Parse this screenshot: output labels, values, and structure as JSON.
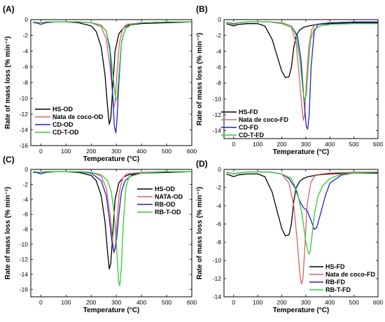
{
  "chart_data": [
    {
      "type": "line",
      "panel_label": "(A)",
      "xlabel": "Temperature (°C)",
      "ylabel": "Rate of mass loss (% min⁻¹)",
      "xlim": [
        -40,
        600
      ],
      "ylim": [
        -16,
        0
      ],
      "xticks": [
        0,
        100,
        200,
        300,
        400,
        500,
        600
      ],
      "yticks": [
        0,
        -2,
        -4,
        -6,
        -8,
        -10,
        -12,
        -14,
        -16
      ],
      "legend_position": "bottom-left",
      "series": [
        {
          "name": "HS-OD",
          "color": "#000000",
          "x": [
            -30,
            0,
            20,
            60,
            100,
            150,
            200,
            220,
            240,
            255,
            265,
            272,
            278,
            285,
            295,
            310,
            330,
            350,
            400,
            500,
            600
          ],
          "y": [
            -0.4,
            -0.4,
            -0.3,
            -0.3,
            -0.3,
            -0.4,
            -0.8,
            -1.5,
            -3.5,
            -7,
            -11,
            -13.3,
            -12.5,
            -9,
            -4,
            -1.8,
            -1,
            -0.7,
            -0.5,
            -0.4,
            -0.3
          ]
        },
        {
          "name": "Nata de coco-OD",
          "color": "#e06060",
          "x": [
            -30,
            0,
            20,
            60,
            100,
            150,
            200,
            240,
            260,
            275,
            285,
            290,
            295,
            302,
            312,
            325,
            340,
            400,
            500,
            600
          ],
          "y": [
            -0.3,
            -0.4,
            -0.3,
            -0.3,
            -0.3,
            -0.3,
            -0.4,
            -0.9,
            -2.5,
            -6,
            -9.5,
            -11.2,
            -10.5,
            -7,
            -3,
            -1.2,
            -0.6,
            -0.4,
            -0.3,
            -0.3
          ]
        },
        {
          "name": "CD-OD",
          "color": "#2020cc",
          "x": [
            -30,
            0,
            20,
            60,
            100,
            150,
            200,
            240,
            260,
            275,
            285,
            292,
            298,
            302,
            310,
            320,
            335,
            360,
            400,
            500,
            600
          ],
          "y": [
            -0.3,
            -0.6,
            -0.4,
            -0.3,
            -0.3,
            -0.3,
            -0.4,
            -0.7,
            -1.5,
            -4,
            -9,
            -13.5,
            -14.4,
            -13,
            -8,
            -3,
            -1.2,
            -0.6,
            -0.4,
            -0.3,
            -0.3
          ]
        },
        {
          "name": "CD-T-OD",
          "color": "#33cc33",
          "x": [
            -30,
            0,
            20,
            60,
            100,
            150,
            200,
            240,
            260,
            275,
            288,
            298,
            303,
            310,
            320,
            335,
            360,
            400,
            500,
            600
          ],
          "y": [
            -0.3,
            -0.4,
            -0.3,
            -0.3,
            -0.3,
            -0.3,
            -0.4,
            -0.7,
            -1.5,
            -3.5,
            -7.5,
            -10.3,
            -10,
            -7,
            -3,
            -1.2,
            -0.6,
            -0.4,
            -0.3,
            -0.3
          ]
        }
      ]
    },
    {
      "type": "line",
      "panel_label": "(B)",
      "xlabel": "Temperature (°C)",
      "ylabel": "Rate of mass loss (% min⁻¹)",
      "xlim": [
        -40,
        600
      ],
      "ylim": [
        -15,
        0
      ],
      "xticks": [
        0,
        100,
        200,
        300,
        400,
        500,
        600
      ],
      "yticks": [
        0,
        -2,
        -4,
        -6,
        -8,
        -10,
        -12,
        -14
      ],
      "legend_position": "bottom-left",
      "series": [
        {
          "name": "HS-FD",
          "color": "#000000",
          "x": [
            -30,
            0,
            20,
            60,
            100,
            130,
            160,
            180,
            200,
            215,
            230,
            240,
            250,
            260,
            275,
            290,
            310,
            350,
            400,
            500,
            600
          ],
          "y": [
            -0.5,
            -0.8,
            -0.6,
            -0.5,
            -0.5,
            -0.8,
            -2.5,
            -4.5,
            -6.5,
            -7.3,
            -7.2,
            -6,
            -3.5,
            -2,
            -1.3,
            -1,
            -0.8,
            -0.6,
            -0.5,
            -0.4,
            -0.4
          ]
        },
        {
          "name": "Nata de coco-FD",
          "color": "#e06060",
          "x": [
            -30,
            0,
            20,
            60,
            100,
            150,
            200,
            240,
            260,
            275,
            285,
            290,
            295,
            302,
            312,
            325,
            340,
            400,
            500,
            600
          ],
          "y": [
            -0.3,
            -0.5,
            -0.4,
            -0.3,
            -0.3,
            -0.3,
            -0.5,
            -1,
            -3,
            -8,
            -11.5,
            -12.7,
            -12,
            -8,
            -3.5,
            -1.2,
            -0.6,
            -0.4,
            -0.3,
            -0.3
          ]
        },
        {
          "name": "CD-FD",
          "color": "#2020cc",
          "x": [
            -30,
            0,
            20,
            60,
            100,
            150,
            200,
            240,
            265,
            280,
            292,
            302,
            308,
            314,
            322,
            335,
            350,
            400,
            500,
            600
          ],
          "y": [
            -0.3,
            -0.6,
            -0.4,
            -0.3,
            -0.3,
            -0.3,
            -0.4,
            -0.8,
            -2,
            -5,
            -10,
            -13.5,
            -13.8,
            -12,
            -6,
            -1.5,
            -0.6,
            -0.4,
            -0.3,
            -0.3
          ]
        },
        {
          "name": "CD-T-FD",
          "color": "#33cc33",
          "x": [
            -30,
            0,
            20,
            60,
            100,
            150,
            200,
            240,
            260,
            275,
            288,
            295,
            302,
            310,
            320,
            335,
            360,
            400,
            500,
            600
          ],
          "y": [
            -0.3,
            -0.5,
            -0.4,
            -0.3,
            -0.3,
            -0.3,
            -0.4,
            -0.8,
            -2,
            -5,
            -9,
            -10.2,
            -9.5,
            -6,
            -2.5,
            -1.2,
            -0.8,
            -0.6,
            -0.5,
            -0.5
          ]
        }
      ]
    },
    {
      "type": "line",
      "panel_label": "(C)",
      "xlabel": "Temperature (°C)",
      "ylabel": "Rate of mass loss (% min⁻¹)",
      "xlim": [
        -40,
        600
      ],
      "ylim": [
        -17,
        0
      ],
      "xticks": [
        0,
        100,
        200,
        300,
        400,
        500,
        600
      ],
      "yticks": [
        0,
        -2,
        -4,
        -6,
        -8,
        -10,
        -12,
        -14,
        -16
      ],
      "legend_position": "top-right",
      "series": [
        {
          "name": "HS-OD",
          "color": "#000000",
          "x": [
            -30,
            0,
            20,
            60,
            100,
            150,
            200,
            220,
            240,
            255,
            265,
            272,
            278,
            285,
            295,
            310,
            330,
            350,
            400,
            500,
            600
          ],
          "y": [
            -0.4,
            -0.4,
            -0.3,
            -0.3,
            -0.3,
            -0.4,
            -0.8,
            -1.5,
            -3.5,
            -7,
            -11,
            -13.3,
            -12.5,
            -9,
            -4,
            -1.8,
            -1,
            -0.7,
            -0.5,
            -0.4,
            -0.3
          ]
        },
        {
          "name": "NATA-OD",
          "color": "#e06060",
          "x": [
            -30,
            0,
            20,
            60,
            100,
            150,
            200,
            240,
            260,
            275,
            285,
            290,
            295,
            302,
            312,
            325,
            340,
            400,
            500,
            600
          ],
          "y": [
            -0.3,
            -0.4,
            -0.3,
            -0.3,
            -0.3,
            -0.3,
            -0.4,
            -0.9,
            -2.5,
            -6,
            -9.5,
            -11.2,
            -10.5,
            -7,
            -3,
            -1.2,
            -0.6,
            -0.4,
            -0.3,
            -0.3
          ]
        },
        {
          "name": "RB-OD",
          "color": "#2020cc",
          "x": [
            -30,
            0,
            20,
            60,
            100,
            150,
            200,
            240,
            260,
            272,
            282,
            290,
            296,
            302,
            310,
            320,
            335,
            360,
            400,
            500,
            600
          ],
          "y": [
            -0.3,
            -0.6,
            -0.4,
            -0.3,
            -0.3,
            -0.3,
            -0.5,
            -1.5,
            -3.5,
            -6.5,
            -9.5,
            -11,
            -10.5,
            -9,
            -6,
            -3,
            -1.5,
            -0.8,
            -0.5,
            -0.3,
            -0.3
          ]
        },
        {
          "name": "RB-T-OD",
          "color": "#33cc33",
          "x": [
            -30,
            0,
            20,
            60,
            100,
            150,
            200,
            240,
            265,
            280,
            292,
            302,
            310,
            314,
            320,
            328,
            338,
            350,
            400,
            500,
            600
          ],
          "y": [
            -0.3,
            -0.4,
            -0.3,
            -0.3,
            -0.3,
            -0.3,
            -0.4,
            -0.7,
            -1.5,
            -3,
            -6,
            -11,
            -15.3,
            -15.5,
            -13,
            -7,
            -2.5,
            -1,
            -0.5,
            -0.3,
            -0.3
          ]
        }
      ]
    },
    {
      "type": "line",
      "panel_label": "(D)",
      "xlabel": "Temperature (°C)",
      "ylabel": "Rate of mass loss (% min⁻¹)",
      "xlim": [
        -40,
        600
      ],
      "ylim": [
        -14,
        0
      ],
      "xticks": [
        0,
        100,
        200,
        300,
        400,
        500,
        600
      ],
      "yticks": [
        0,
        -2,
        -4,
        -6,
        -8,
        -10,
        -12,
        -14
      ],
      "legend_position": "bottom-right",
      "series": [
        {
          "name": "HS-FD",
          "color": "#000000",
          "x": [
            -30,
            0,
            20,
            60,
            100,
            130,
            160,
            180,
            200,
            215,
            230,
            240,
            250,
            260,
            275,
            290,
            310,
            350,
            400,
            500,
            600
          ],
          "y": [
            -0.5,
            -0.8,
            -0.6,
            -0.5,
            -0.5,
            -0.8,
            -2.5,
            -4.5,
            -6.5,
            -7.3,
            -7.2,
            -6,
            -3.5,
            -2,
            -1.3,
            -1,
            -0.8,
            -0.6,
            -0.5,
            -0.4,
            -0.4
          ]
        },
        {
          "name": "Nata de coco-FD",
          "color": "#e06060",
          "x": [
            -30,
            0,
            20,
            60,
            100,
            150,
            200,
            230,
            250,
            265,
            275,
            282,
            288,
            295,
            305,
            320,
            340,
            400,
            500,
            600
          ],
          "y": [
            -0.3,
            -0.5,
            -0.4,
            -0.3,
            -0.3,
            -0.3,
            -0.5,
            -1.5,
            -4,
            -8,
            -11.5,
            -12.6,
            -12,
            -9,
            -4,
            -1.5,
            -0.6,
            -0.4,
            -0.3,
            -0.3
          ]
        },
        {
          "name": "RB-FD",
          "color": "#2020cc",
          "x": [
            -30,
            0,
            20,
            60,
            100,
            150,
            200,
            230,
            255,
            275,
            290,
            305,
            320,
            335,
            345,
            360,
            380,
            400,
            450,
            500,
            600
          ],
          "y": [
            -0.3,
            -0.5,
            -0.4,
            -0.3,
            -0.3,
            -0.3,
            -0.5,
            -1,
            -2,
            -3.5,
            -4.2,
            -4.5,
            -5.5,
            -6.6,
            -6.4,
            -5,
            -3,
            -1.5,
            -0.6,
            -0.4,
            -0.3
          ]
        },
        {
          "name": "RB-T-FD",
          "color": "#33cc33",
          "x": [
            -30,
            0,
            20,
            60,
            100,
            150,
            200,
            240,
            265,
            285,
            300,
            312,
            318,
            325,
            335,
            350,
            370,
            400,
            450,
            500,
            600
          ],
          "y": [
            -0.3,
            -0.5,
            -0.4,
            -0.3,
            -0.3,
            -0.3,
            -0.5,
            -1,
            -2.5,
            -5,
            -8,
            -9.3,
            -9,
            -7.5,
            -5,
            -3,
            -1.8,
            -1,
            -0.5,
            -0.4,
            -0.3
          ]
        }
      ]
    }
  ]
}
